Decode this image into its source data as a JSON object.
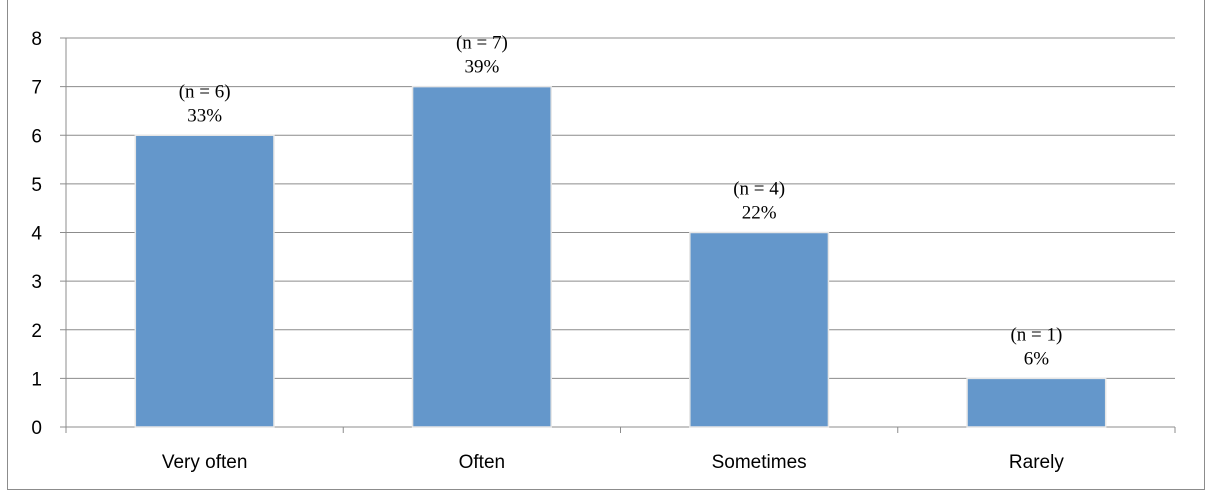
{
  "chart_data": {
    "type": "bar",
    "categories": [
      "Very often",
      "Often",
      "Sometimes",
      "Rarely"
    ],
    "values": [
      6,
      7,
      4,
      1
    ],
    "data_labels": [
      {
        "count": "(n = 6)",
        "percent": "33%"
      },
      {
        "count": "(n = 7)",
        "percent": "39%"
      },
      {
        "count": "(n = 4)",
        "percent": "22%"
      },
      {
        "count": "(n = 1)",
        "percent": "6%"
      }
    ],
    "yticks": [
      0,
      1,
      2,
      3,
      4,
      5,
      6,
      7,
      8
    ],
    "ylim": [
      0,
      8
    ],
    "grid": true,
    "legend": "none",
    "title": "",
    "xlabel": "",
    "ylabel": "",
    "colors": {
      "bar_fill": "#6497cb",
      "bar_edge": "#e6e6e6",
      "grid": "#8c8c8c",
      "axis": "#8c8c8c"
    }
  }
}
